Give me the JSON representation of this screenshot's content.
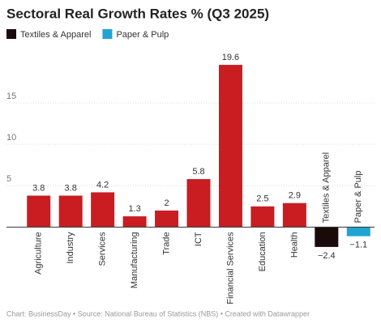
{
  "chart_data": {
    "type": "bar",
    "title": "Sectoral Real Growth Rates % (Q3 2025)",
    "legend": [
      {
        "name": "Textiles & Apparel",
        "color": "#1a0a0a"
      },
      {
        "name": "Paper & Pulp",
        "color": "#1fa4d4"
      }
    ],
    "categories": [
      "Agriculture",
      "Industry",
      "Services",
      "Manufacturing",
      "Trade",
      "ICT",
      "Financial Services",
      "Education",
      "Health",
      "Textiles & Apparel",
      "Paper & Pulp"
    ],
    "values": [
      3.8,
      3.8,
      4.2,
      1.3,
      2,
      5.8,
      19.6,
      2.5,
      2.9,
      -2.4,
      -1.1
    ],
    "value_labels": [
      "3.8",
      "3.8",
      "4.2",
      "1.3",
      "2",
      "5.8",
      "19.6",
      "2.5",
      "2.9",
      "−2.4",
      "−1.1"
    ],
    "colors": [
      "#c91d22",
      "#c91d22",
      "#c91d22",
      "#c91d22",
      "#c91d22",
      "#c91d22",
      "#c91d22",
      "#c91d22",
      "#c91d22",
      "#1a0a0a",
      "#1fa4d4"
    ],
    "ylim": [
      -3,
      20
    ],
    "yticks": [
      5,
      10,
      15
    ],
    "grid": true,
    "footer": "Chart: BusinessDay • Source: National Bureau of Statistics (NBS) • Created with Datawrapper"
  }
}
